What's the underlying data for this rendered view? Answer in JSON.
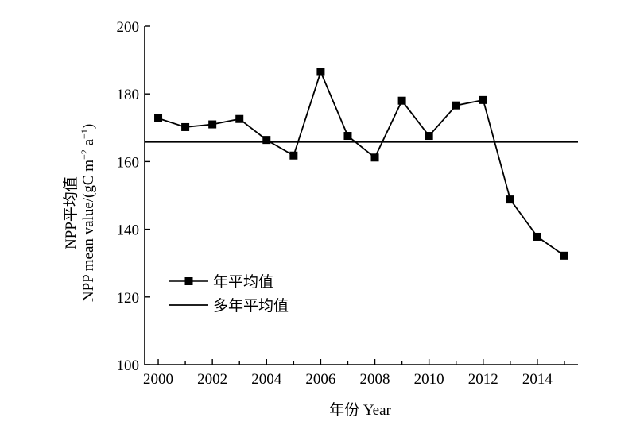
{
  "chart_data": {
    "type": "line",
    "xlabel": "年份 Year",
    "ylabel_line1": "NPP平均值",
    "ylabel_line2_main": "NPP mean value/(gC m",
    "ylabel_line2_exp1": "−2",
    "ylabel_line2_mid": " a",
    "ylabel_line2_exp2": "−1",
    "ylabel_line2_end": ")",
    "xlim": [
      1999.5,
      2015.5
    ],
    "ylim": [
      100,
      200
    ],
    "x_ticks": [
      2000,
      2002,
      2004,
      2006,
      2008,
      2010,
      2012,
      2014
    ],
    "y_ticks": [
      100,
      120,
      140,
      160,
      180,
      200
    ],
    "grid": false,
    "legend_position": "lower-left",
    "series": [
      {
        "name": "年平均值",
        "marker": "square",
        "x": [
          2000,
          2001,
          2002,
          2003,
          2004,
          2005,
          2006,
          2007,
          2008,
          2009,
          2010,
          2011,
          2012,
          2013,
          2014,
          2015
        ],
        "values": [
          172.8,
          170.2,
          171.0,
          172.6,
          166.4,
          161.8,
          186.5,
          167.6,
          161.2,
          178.0,
          167.6,
          176.6,
          178.2,
          148.8,
          137.8,
          132.2
        ]
      },
      {
        "name": "多年平均值",
        "marker": "none",
        "type": "hline",
        "value": 165.8
      }
    ]
  }
}
